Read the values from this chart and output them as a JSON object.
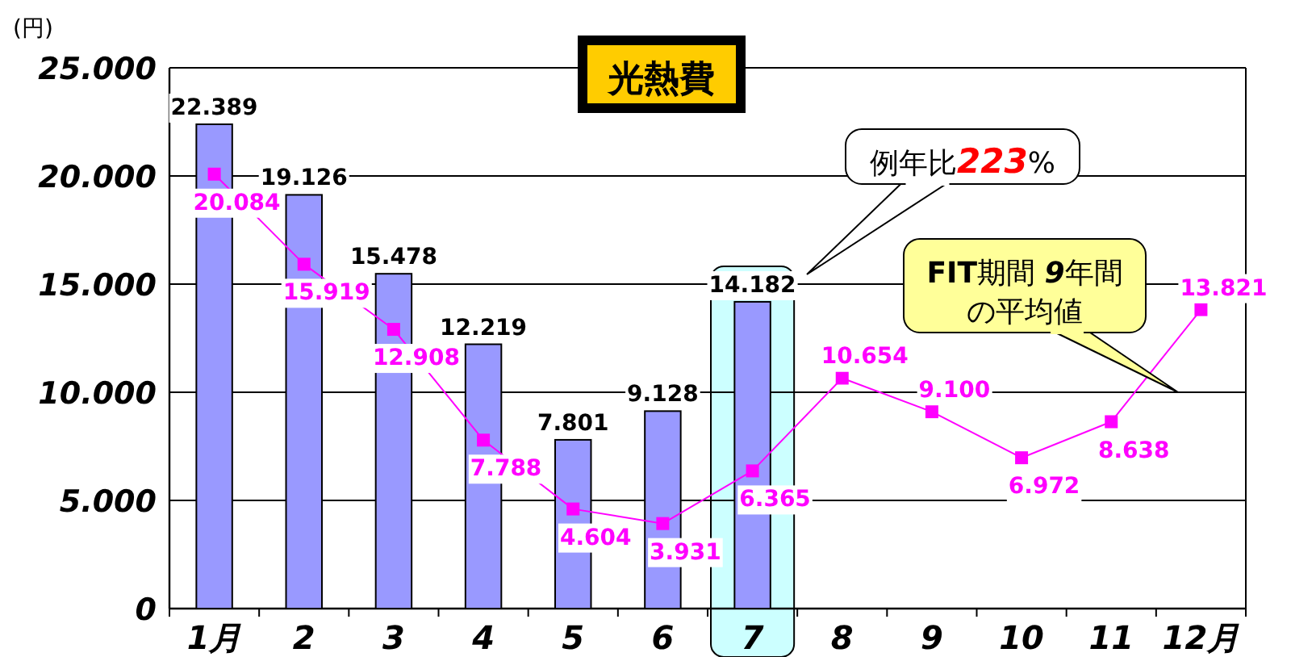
{
  "chart_data": {
    "type": "bar",
    "title": "光熱費",
    "ylabel": "(円)",
    "categories": [
      "1月",
      "2",
      "3",
      "4",
      "5",
      "6",
      "7",
      "8",
      "9",
      "10",
      "11",
      "12月"
    ],
    "series": [
      {
        "color": "#9999ff",
        "values": [
          22389,
          19126,
          15478,
          12219,
          7801,
          9128,
          14182,
          null,
          null,
          null,
          null,
          null
        ],
        "value_labels": [
          "22.389",
          "19.126",
          "15.478",
          "12.219",
          "7.801",
          "9.128",
          "14.182",
          null,
          null,
          null,
          null,
          null
        ]
      },
      {
        "type": "line",
        "color": "#ff00ff",
        "marker": "square",
        "values": [
          20084,
          15919,
          12908,
          7788,
          4604,
          3931,
          6365,
          10654,
          9100,
          6972,
          8638,
          13821
        ],
        "value_labels": [
          "20.084",
          "15.919",
          "12.908",
          "7.788",
          "4.604",
          "3.931",
          "6.365",
          "10.654",
          "9.100",
          "6.972",
          "8.638",
          "13.821"
        ]
      }
    ],
    "ylim": [
      0,
      25000
    ],
    "yticks": [
      {
        "value": 0,
        "label": "0"
      },
      {
        "value": 5000,
        "label": "5.000"
      },
      {
        "value": 10000,
        "label": "10.000"
      },
      {
        "value": 15000,
        "label": "15.000"
      },
      {
        "value": 20000,
        "label": "20.000"
      },
      {
        "value": 25000,
        "label": "25.000"
      }
    ],
    "grid": "y",
    "bands": [
      {
        "axis": "x",
        "from": "7",
        "to": "7",
        "color": "#ccffff"
      }
    ],
    "annotations": [
      "例年比223%",
      "FIT期間 9年間の平均値"
    ]
  }
}
